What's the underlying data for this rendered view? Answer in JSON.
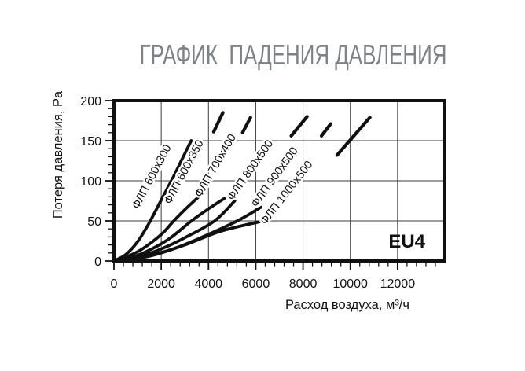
{
  "title": {
    "text": "ГРАФИК  ПАДЕНИЯ ДАВЛЕНИЯ",
    "color": "#7d8286"
  },
  "chart_data": {
    "type": "line",
    "title": "ГРАФИК  ПАДЕНИЯ ДАВЛЕНИЯ",
    "xlabel": "Расход воздуха, м³/ч",
    "ylabel": "Потеря давления, Pa",
    "badge": "EU4",
    "x_ticks": [
      0,
      2000,
      4000,
      6000,
      8000,
      10000,
      12000
    ],
    "y_ticks": [
      0,
      50,
      100,
      150,
      200
    ],
    "x_minor_step": 400,
    "y_minor_step": 10,
    "xlim": [
      0,
      14000
    ],
    "ylim": [
      0,
      200
    ],
    "grid": true,
    "ink_color": "#111111",
    "series": [
      {
        "name": "ФЛП 600x300",
        "points": [
          [
            0,
            0
          ],
          [
            500,
            8
          ],
          [
            1000,
            24
          ],
          [
            1500,
            48
          ],
          [
            2000,
            76
          ],
          [
            2500,
            104
          ],
          [
            2900,
            128
          ],
          [
            3270,
            150
          ]
        ]
      },
      {
        "name": "ФЛП 600x350",
        "points": [
          [
            0,
            0
          ],
          [
            600,
            6
          ],
          [
            1200,
            15
          ],
          [
            2000,
            33
          ],
          [
            2500,
            49
          ],
          [
            3000,
            64
          ],
          [
            3620,
            81
          ]
        ],
        "upper_segment": [
          [
            4220,
            161
          ],
          [
            4610,
            185
          ]
        ]
      },
      {
        "name": "ФЛП 700x400",
        "points": [
          [
            0,
            0
          ],
          [
            800,
            5
          ],
          [
            1600,
            15
          ],
          [
            2400,
            29
          ],
          [
            3280,
            50
          ],
          [
            4000,
            65
          ],
          [
            4670,
            78
          ]
        ],
        "upper_segment": [
          [
            5440,
            160
          ],
          [
            5780,
            179
          ]
        ]
      },
      {
        "name": "ФЛП 800x500",
        "points": [
          [
            0,
            0
          ],
          [
            1000,
            5
          ],
          [
            2000,
            15
          ],
          [
            3000,
            29
          ],
          [
            4260,
            50
          ],
          [
            5110,
            75
          ]
        ],
        "upper_segment": [
          [
            7500,
            156
          ],
          [
            8170,
            180
          ]
        ]
      },
      {
        "name": "ФЛП 900x500",
        "points": [
          [
            0,
            0
          ],
          [
            1200,
            5
          ],
          [
            2400,
            14
          ],
          [
            3600,
            28
          ],
          [
            5220,
            50
          ],
          [
            6220,
            67
          ]
        ],
        "upper_segment": [
          [
            8780,
            156
          ],
          [
            9170,
            171
          ]
        ]
      },
      {
        "name": "ФЛП 1000x500",
        "points": [
          [
            0,
            0
          ],
          [
            1500,
            6
          ],
          [
            3000,
            20
          ],
          [
            4500,
            37
          ],
          [
            6170,
            49
          ]
        ],
        "upper_segment": [
          [
            9440,
            132
          ],
          [
            10830,
            179
          ]
        ]
      }
    ]
  }
}
